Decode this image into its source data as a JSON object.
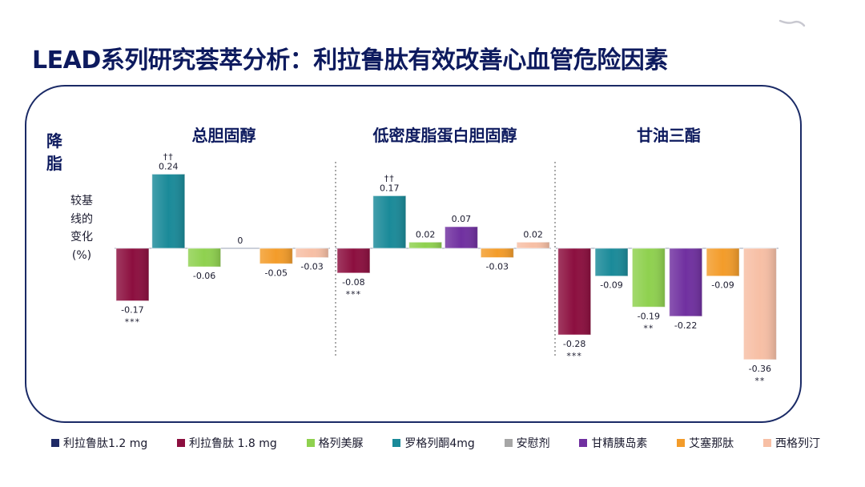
{
  "slide": {
    "title": "LEAD系列研究荟萃分析：利拉鲁肽有效改善心血管危险因素"
  },
  "chart_data": {
    "type": "bar",
    "ylabel_main": "降脂",
    "ylabel_sub": "较基线的变化(%)",
    "grid": false,
    "legend_position": "bottom",
    "legend": [
      {
        "name": "利拉鲁肽1.2 mg",
        "color": "#1f2a66"
      },
      {
        "name": "利拉鲁肽 1.8 mg",
        "color": "#8c0f3f"
      },
      {
        "name": "格列美脲",
        "color": "#8fd14f"
      },
      {
        "name": "罗格列酮4mg",
        "color": "#1a8a99"
      },
      {
        "name": "安慰剂",
        "color": "#a6a6a6"
      },
      {
        "name": "甘精胰岛素",
        "color": "#7030a0"
      },
      {
        "name": "艾塞那肽",
        "color": "#f39c2a"
      },
      {
        "name": "西格列汀",
        "color": "#f7bfa5"
      }
    ],
    "panels": [
      {
        "title": "总胆固醇",
        "bars": [
          {
            "series": "利拉鲁肽 1.8 mg",
            "value": -0.17,
            "label": "-0.17",
            "sig": "***"
          },
          {
            "series": "罗格列酮4mg",
            "value": 0.24,
            "label": "0.24",
            "sig": "††"
          },
          {
            "series": "格列美脲",
            "value": -0.06,
            "label": "-0.06",
            "sig": ""
          },
          {
            "series": "安慰剂",
            "value": 0,
            "label": "0",
            "sig": ""
          },
          {
            "series": "艾塞那肽",
            "value": -0.05,
            "label": "-0.05",
            "sig": ""
          },
          {
            "series": "西格列汀",
            "value": -0.03,
            "label": "-0.03",
            "sig": ""
          }
        ]
      },
      {
        "title": "低密度脂蛋白胆固醇",
        "bars": [
          {
            "series": "利拉鲁肽 1.8 mg",
            "value": -0.08,
            "label": "-0.08",
            "sig": "***"
          },
          {
            "series": "罗格列酮4mg",
            "value": 0.17,
            "label": "0.17",
            "sig": "††"
          },
          {
            "series": "格列美脲",
            "value": 0.02,
            "label": "0.02",
            "sig": ""
          },
          {
            "series": "甘精胰岛素",
            "value": 0.07,
            "label": "0.07",
            "sig": ""
          },
          {
            "series": "艾塞那肽",
            "value": -0.03,
            "label": "-0.03",
            "sig": ""
          },
          {
            "series": "西格列汀",
            "value": 0.02,
            "label": "0.02",
            "sig": ""
          }
        ]
      },
      {
        "title": "甘油三酯",
        "bars": [
          {
            "series": "利拉鲁肽 1.8 mg",
            "value": -0.28,
            "label": "-0.28",
            "sig": "***"
          },
          {
            "series": "罗格列酮4mg",
            "value": -0.09,
            "label": "-0.09",
            "sig": ""
          },
          {
            "series": "格列美脲",
            "value": -0.19,
            "label": "-0.19",
            "sig": "**"
          },
          {
            "series": "甘精胰岛素",
            "value": -0.22,
            "label": "-0.22",
            "sig": ""
          },
          {
            "series": "艾塞那肽",
            "value": -0.09,
            "label": "-0.09",
            "sig": ""
          },
          {
            "series": "西格列汀",
            "value": -0.36,
            "label": "-0.36",
            "sig": "**"
          }
        ]
      }
    ]
  }
}
